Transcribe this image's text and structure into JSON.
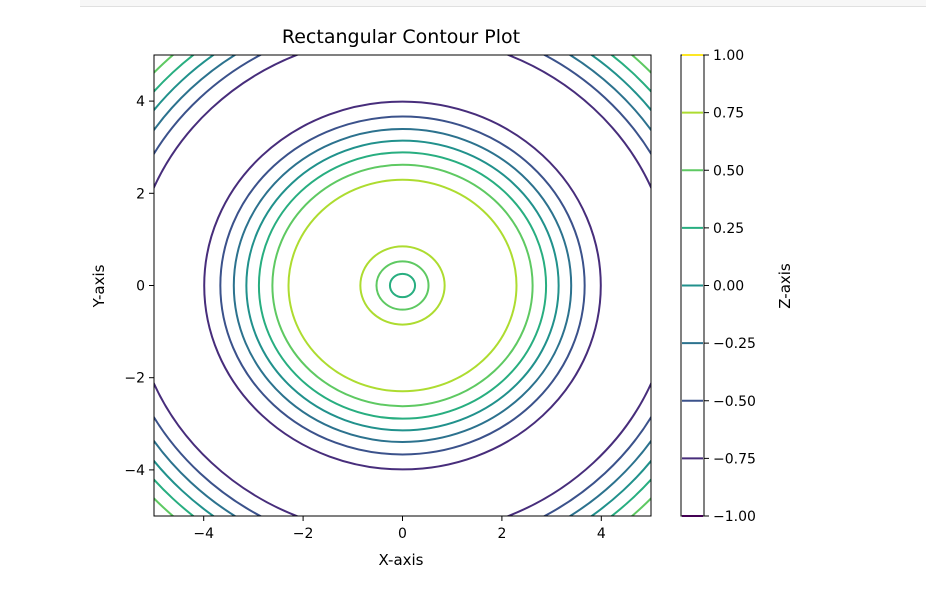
{
  "chart_data": {
    "type": "contour",
    "title": "Rectangular Contour Plot",
    "xlabel": "X-axis",
    "ylabel": "Y-axis",
    "colorbar_label": "Z-axis",
    "xlim": [
      -5,
      5
    ],
    "ylim": [
      -5,
      5
    ],
    "x_ticks": [
      -4,
      -2,
      0,
      2,
      4
    ],
    "y_ticks": [
      -4,
      -2,
      0,
      2,
      4
    ],
    "x_tick_labels": [
      "−4",
      "−2",
      "0",
      "2",
      "4"
    ],
    "y_tick_labels": [
      "−4",
      "−2",
      "0",
      "2",
      "4"
    ],
    "function": "z = sin(sqrt(x^2 + y^2))",
    "grid": false,
    "colormap": "viridis",
    "levels": [
      -1.0,
      -0.75,
      -0.5,
      -0.25,
      0.0,
      0.25,
      0.5,
      0.75,
      1.0
    ],
    "level_labels": [
      "−1.00",
      "−0.75",
      "−0.50",
      "−0.25",
      "0.00",
      "0.25",
      "0.50",
      "0.75",
      "1.00"
    ],
    "level_colors": [
      "#440154",
      "#472d7b",
      "#3b528b",
      "#2c728e",
      "#21918c",
      "#28ae80",
      "#5ec962",
      "#addc30",
      "#fde725"
    ]
  }
}
